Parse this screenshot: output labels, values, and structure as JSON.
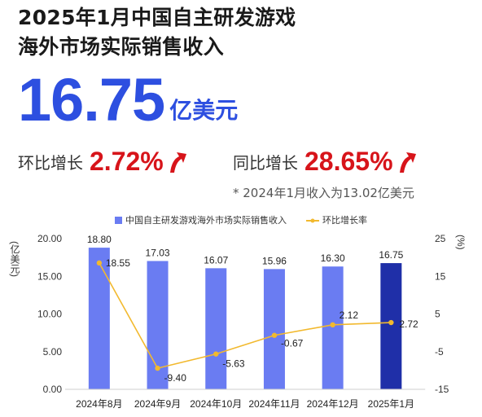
{
  "title": {
    "line1": "2025年1月中国自主研发游戏",
    "line2": "海外市场实际销售收入"
  },
  "headline": {
    "value": "16.75",
    "unit": "亿美元"
  },
  "mom": {
    "label": "环比增长",
    "value": "2.72%"
  },
  "yoy": {
    "label": "同比增长",
    "value": "28.65%"
  },
  "footnote": "* 2024年1月收入为13.02亿美元",
  "colors": {
    "bar": "#6a7cf2",
    "bar_highlight": "#1f2fa8",
    "line": "#f2b92e",
    "accent_red": "#d7141a",
    "headline_blue": "#2d4fe0"
  },
  "chart_data": {
    "type": "bar+line",
    "categories": [
      "2024年8月",
      "2024年9月",
      "2024年10月",
      "2024年11月",
      "2024年12月",
      "2025年1月"
    ],
    "series": [
      {
        "name": "中国自主研发游戏海外市场实际销售收入",
        "type": "bar",
        "axis": "left",
        "values": [
          18.8,
          17.03,
          16.07,
          15.96,
          16.3,
          16.75
        ],
        "labels": [
          "18.80",
          "17.03",
          "16.07",
          "15.96",
          "16.30",
          "16.75"
        ]
      },
      {
        "name": "环比增长率",
        "type": "line",
        "axis": "right",
        "values": [
          18.55,
          -9.4,
          -5.63,
          -0.67,
          2.12,
          2.72
        ],
        "labels": [
          "18.55",
          "-9.40",
          "-5.63",
          "-0.67",
          "2.12",
          "2.72"
        ]
      }
    ],
    "y_left": {
      "label": "(亿美元)",
      "range": [
        0,
        20
      ],
      "ticks": [
        "0.00",
        "5.00",
        "10.00",
        "15.00",
        "20.00"
      ]
    },
    "y_right": {
      "label": "(%)",
      "range": [
        -15,
        25
      ],
      "ticks": [
        "-15",
        "-5",
        "5",
        "15",
        "25"
      ]
    },
    "legend_position": "top",
    "grid": false
  }
}
